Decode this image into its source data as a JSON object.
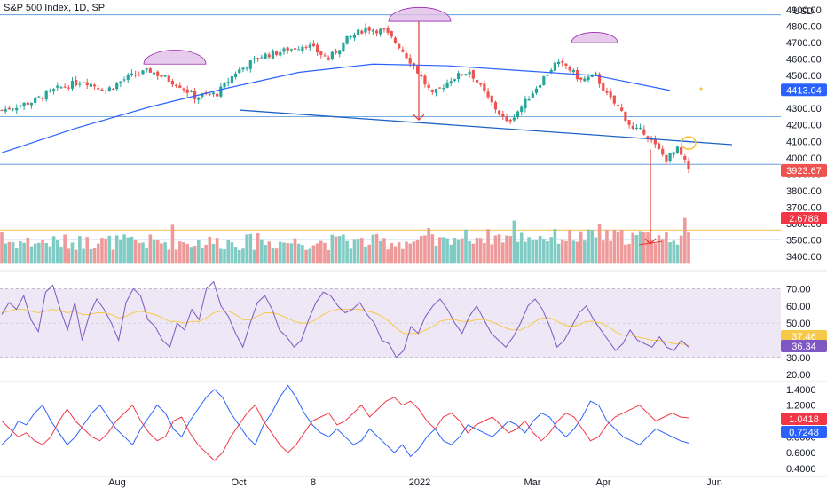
{
  "header": {
    "title": "S&P 500 Index, 1D, SP"
  },
  "colors": {
    "up": "#26a69a",
    "down": "#ef5350",
    "ma": "#2962ff",
    "rsi": "#7e57c2",
    "rsi_ma": "#f7c948",
    "band": "#ede7f6",
    "line_blue": "#2962ff",
    "line_red": "#f23645",
    "annot_red": "#e53935"
  },
  "chart_data": [
    {
      "type": "candlestick",
      "name": "price-panel",
      "title": "S&P 500 Index, 1D, SP",
      "y_ticks": [
        "4900.00",
        "4800.00",
        "4700.00",
        "4600.00",
        "4500.00",
        "4400.00",
        "4300.00",
        "4200.00",
        "4100.00",
        "4000.00",
        "3900.00",
        "3800.00",
        "3700.00",
        "3600.00",
        "3500.00",
        "3400.00"
      ],
      "y_tick_values": [
        4900,
        4800,
        4700,
        4600,
        4500,
        4400,
        4300,
        4200,
        4100,
        4000,
        3900,
        3800,
        3700,
        3600,
        3500,
        3400
      ],
      "unit": "USD",
      "ylim": [
        3340,
        4960
      ],
      "x_ticks": [
        "Aug",
        "Oct",
        "8",
        "2022",
        "Mar",
        "Apr",
        "Jun"
      ],
      "last_price": "3923.67",
      "ma_value": "4413.04",
      "volume_value": "2.6788",
      "price_path": [
        [
          0,
          4290
        ],
        [
          8,
          4340
        ],
        [
          15,
          4420
        ],
        [
          22,
          4470
        ],
        [
          28,
          4410
        ],
        [
          34,
          4490
        ],
        [
          40,
          4530
        ],
        [
          48,
          4440
        ],
        [
          52,
          4370
        ],
        [
          58,
          4390
        ],
        [
          63,
          4520
        ],
        [
          70,
          4620
        ],
        [
          76,
          4650
        ],
        [
          82,
          4690
        ],
        [
          88,
          4600
        ],
        [
          93,
          4720
        ],
        [
          98,
          4790
        ],
        [
          103,
          4770
        ],
        [
          107,
          4680
        ],
        [
          111,
          4560
        ],
        [
          116,
          4380
        ],
        [
          121,
          4480
        ],
        [
          126,
          4530
        ],
        [
          131,
          4360
        ],
        [
          136,
          4210
        ],
        [
          140,
          4310
        ],
        [
          145,
          4460
        ],
        [
          149,
          4570
        ],
        [
          152,
          4560
        ],
        [
          156,
          4470
        ],
        [
          160,
          4500
        ],
        [
          163,
          4380
        ],
        [
          167,
          4280
        ],
        [
          170,
          4170
        ],
        [
          173,
          4160
        ],
        [
          176,
          4070
        ],
        [
          179,
          3990
        ],
        [
          182,
          4050
        ],
        [
          185,
          3930
        ]
      ],
      "ma_path": [
        [
          0,
          4030
        ],
        [
          20,
          4180
        ],
        [
          40,
          4310
        ],
        [
          60,
          4420
        ],
        [
          80,
          4520
        ],
        [
          100,
          4570
        ],
        [
          120,
          4560
        ],
        [
          140,
          4530
        ],
        [
          160,
          4500
        ],
        [
          180,
          4410
        ]
      ],
      "volume_scale": [
        3400,
        3620
      ]
    },
    {
      "type": "line",
      "name": "rsi-panel",
      "y_ticks": [
        "70.00",
        "60.00",
        "50.00",
        "40.00",
        "30.00",
        "20.00"
      ],
      "y_tick_values": [
        70,
        60,
        50,
        40,
        30,
        20
      ],
      "ylim": [
        17,
        79
      ],
      "band": [
        30,
        70
      ],
      "series": [
        {
          "values": [
            55,
            62,
            58,
            66,
            52,
            45,
            68,
            72,
            58,
            46,
            62,
            40,
            55,
            64,
            58,
            50,
            40,
            62,
            70,
            66,
            52,
            48,
            40,
            36,
            50,
            46,
            58,
            52,
            70,
            74,
            60,
            54,
            44,
            36,
            50,
            62,
            66,
            58,
            46,
            42,
            36,
            40,
            52,
            62,
            68,
            66,
            60,
            56,
            58,
            62,
            55,
            50,
            40,
            38,
            30,
            34,
            48,
            44,
            54,
            60,
            64,
            58,
            50,
            44,
            54,
            60,
            52,
            44,
            40,
            36,
            42,
            50,
            60,
            64,
            58,
            48,
            36,
            40,
            48,
            56,
            60,
            52,
            46,
            40,
            34,
            38,
            46,
            40,
            38,
            36,
            42,
            36,
            34,
            40,
            36
          ]
        },
        {
          "values": [
            56,
            57,
            58,
            58,
            57,
            56,
            57,
            58,
            57,
            56,
            57,
            55,
            55,
            56,
            56,
            55,
            53,
            54,
            56,
            57,
            56,
            55,
            53,
            51,
            51,
            50,
            51,
            51,
            53,
            56,
            57,
            57,
            55,
            52,
            52,
            54,
            56,
            56,
            55,
            53,
            51,
            50,
            50,
            52,
            55,
            57,
            58,
            58,
            58,
            58,
            57,
            56,
            54,
            51,
            47,
            44,
            44,
            44,
            46,
            48,
            51,
            52,
            52,
            51,
            51,
            52,
            52,
            51,
            49,
            47,
            46,
            46,
            48,
            51,
            53,
            53,
            51,
            49,
            48,
            49,
            51,
            51,
            50,
            48,
            45,
            43,
            43,
            42,
            41,
            40,
            40,
            39,
            38,
            38,
            37
          ]
        }
      ],
      "value_label_1": "37.46",
      "value_label_2": "36.34"
    },
    {
      "type": "line",
      "name": "correlation-panel",
      "y_ticks": [
        "1.4000",
        "1.2000",
        "1.0000",
        "0.8000",
        "0.6000",
        "0.4000"
      ],
      "y_tick_values": [
        1.4,
        1.2,
        1.0,
        0.8,
        0.6,
        0.4
      ],
      "ylim": [
        0.32,
        1.5
      ],
      "series": [
        {
          "values": [
            0.7,
            0.8,
            1.0,
            0.95,
            1.1,
            1.2,
            1.0,
            0.85,
            0.7,
            0.8,
            0.95,
            1.1,
            1.2,
            1.05,
            0.9,
            0.8,
            0.7,
            0.9,
            1.05,
            1.2,
            1.1,
            0.9,
            0.8,
            1.0,
            1.15,
            1.3,
            1.4,
            1.3,
            1.1,
            0.95,
            0.8,
            0.7,
            0.95,
            1.1,
            1.3,
            1.45,
            1.3,
            1.1,
            0.95,
            0.85,
            0.8,
            0.9,
            0.8,
            0.7,
            0.75,
            0.9,
            0.8,
            0.7,
            0.6,
            0.7,
            0.55,
            0.65,
            0.8,
            0.9,
            0.75,
            0.7,
            0.8,
            0.95,
            0.9,
            0.85,
            0.8,
            0.9,
            1.0,
            0.95,
            0.85,
            1.0,
            1.1,
            1.05,
            0.9,
            0.8,
            0.9,
            1.05,
            1.25,
            1.2,
            1.0,
            0.9,
            0.8,
            0.75,
            0.7,
            0.8,
            0.9,
            0.85,
            0.8,
            0.75,
            0.72
          ]
        },
        {
          "values": [
            1.0,
            0.9,
            0.8,
            0.85,
            0.75,
            0.7,
            0.8,
            1.0,
            1.15,
            1.0,
            0.9,
            0.8,
            0.75,
            0.85,
            1.0,
            1.1,
            1.2,
            1.0,
            0.85,
            0.75,
            0.8,
            1.0,
            1.05,
            0.85,
            0.7,
            0.6,
            0.5,
            0.6,
            0.8,
            0.95,
            1.1,
            1.2,
            1.0,
            0.85,
            0.7,
            0.6,
            0.7,
            0.85,
            1.0,
            1.05,
            1.1,
            0.95,
            1.0,
            1.1,
            1.2,
            1.05,
            1.15,
            1.25,
            1.3,
            1.2,
            1.25,
            1.15,
            1.0,
            0.9,
            1.05,
            1.1,
            1.0,
            0.85,
            0.95,
            1.0,
            1.05,
            0.95,
            0.85,
            0.9,
            1.0,
            0.85,
            0.75,
            0.85,
            1.0,
            1.1,
            1.05,
            0.9,
            0.75,
            0.8,
            0.95,
            1.05,
            1.1,
            1.15,
            1.2,
            1.1,
            1.0,
            1.05,
            1.1,
            1.05,
            1.04
          ]
        }
      ],
      "value_label_1": "1.0418",
      "value_label_2": "0.7248"
    }
  ]
}
